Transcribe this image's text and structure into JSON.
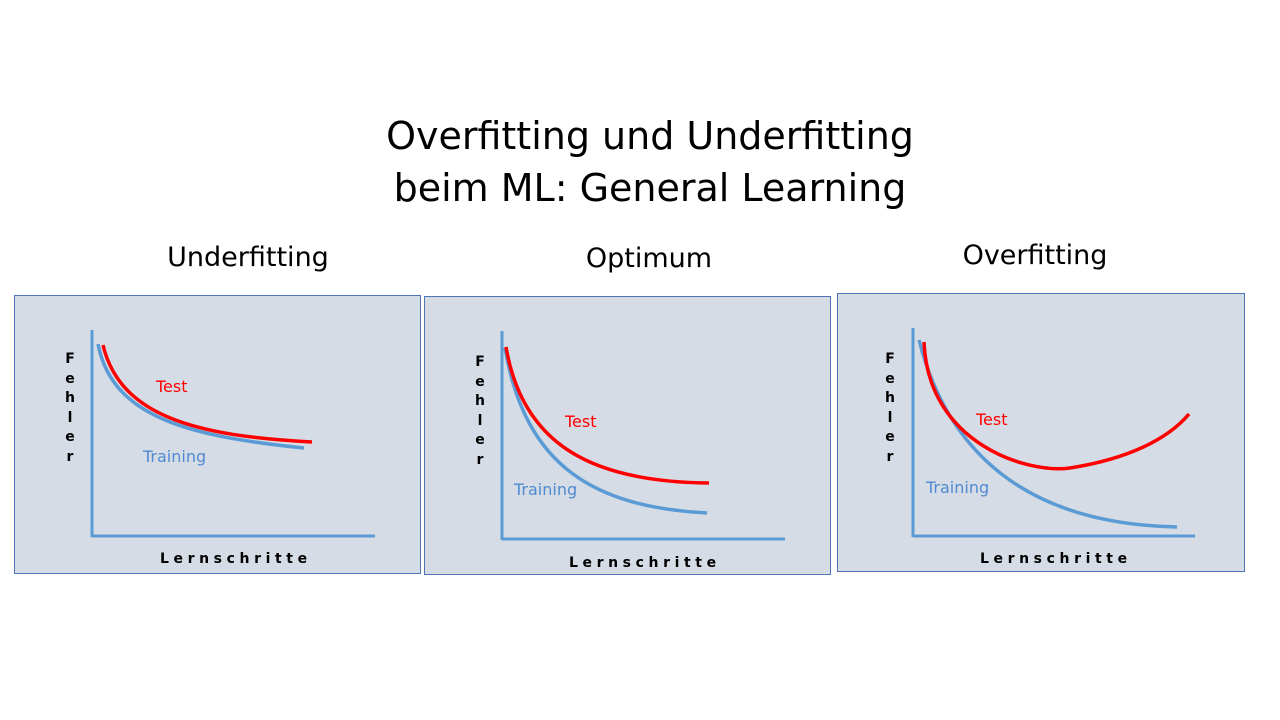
{
  "title": {
    "line1": "Overfitting und Underfitting",
    "line2": "beim ML: General Learning"
  },
  "axis": {
    "y_label": "Fehler",
    "x_label": "Lernschritte"
  },
  "colors": {
    "panel_bg": "#d6dce5",
    "axis": "#5b9bd5",
    "test": "#ff0000",
    "training": "#5b9bd5"
  },
  "panels": [
    {
      "title": "Underfitting",
      "series": {
        "test": "Test",
        "training": "Training"
      },
      "shape": {
        "test": "decreasing, ends high",
        "training": "decreasing, ends high, close to test"
      }
    },
    {
      "title": "Optimum",
      "series": {
        "test": "Test",
        "training": "Training"
      },
      "shape": {
        "test": "decreasing, levels off",
        "training": "decreasing, lower than test"
      }
    },
    {
      "title": "Overfitting",
      "series": {
        "test": "Test",
        "training": "Training"
      },
      "shape": {
        "test": "decreases then rises (U-shape)",
        "training": "keeps decreasing toward zero"
      }
    }
  ]
}
